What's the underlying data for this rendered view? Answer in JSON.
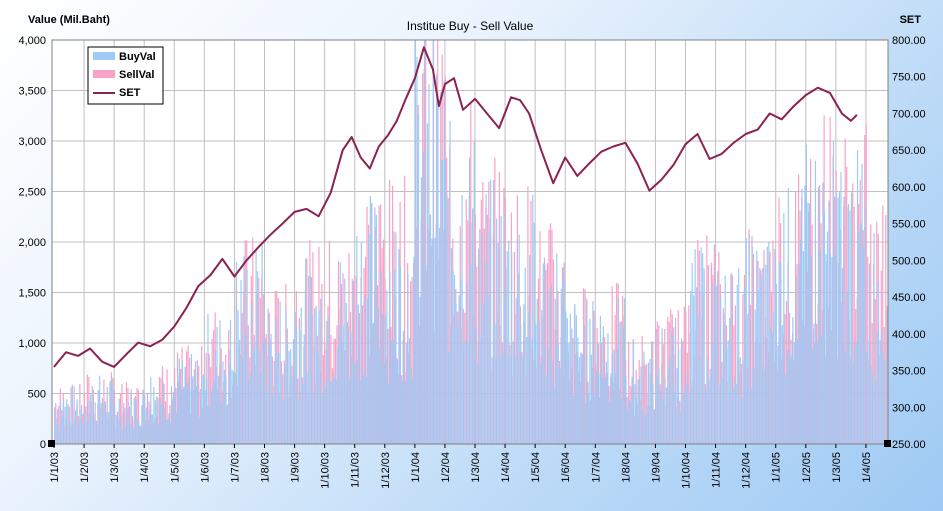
{
  "chart_data": {
    "type": "bar",
    "title": "Institue Buy - Sell Value",
    "ylabel": "Value (Mil.Baht)",
    "y2label": "SET",
    "ylim": [
      0,
      4000
    ],
    "y2lim": [
      250,
      800
    ],
    "yticks": [
      "0",
      "500",
      "1,000",
      "1,500",
      "2,000",
      "2,500",
      "3,000",
      "3,500",
      "4,000"
    ],
    "y2ticks": [
      "250.00",
      "300.00",
      "350.00",
      "400.00",
      "450.00",
      "500.00",
      "550.00",
      "600.00",
      "650.00",
      "700.00",
      "750.00",
      "800.00"
    ],
    "categories": [
      "1/1/03",
      "1/2/03",
      "1/3/03",
      "1/4/03",
      "1/5/03",
      "1/6/03",
      "1/7/03",
      "1/8/03",
      "1/9/03",
      "1/10/03",
      "1/11/03",
      "1/12/03",
      "1/1/04",
      "1/2/04",
      "1/3/04",
      "1/4/04",
      "1/5/04",
      "1/6/04",
      "1/7/04",
      "1/8/04",
      "1/9/04",
      "1/10/04",
      "1/11/04",
      "1/12/04",
      "1/1/05",
      "1/2/05",
      "1/3/05",
      "1/4/05"
    ],
    "grid": true,
    "legend_position": "top-left",
    "series": [
      {
        "name": "BuyVal",
        "type": "bar",
        "color": "#9ecbf5",
        "monthly_level": [
          420,
          500,
          420,
          560,
          650,
          950,
          1450,
          1100,
          1350,
          1400,
          1800,
          1700,
          3000,
          2300,
          1900,
          1800,
          1500,
          1050,
          1100,
          750,
          900,
          1400,
          1300,
          1500,
          1850,
          2200,
          2100,
          1650
        ]
      },
      {
        "name": "SellVal",
        "type": "bar",
        "color": "#f7a3c8",
        "monthly_level": [
          430,
          520,
          440,
          580,
          700,
          1000,
          1500,
          1150,
          1450,
          1500,
          2000,
          1900,
          3200,
          2500,
          2050,
          1900,
          1600,
          1150,
          1150,
          800,
          1000,
          1550,
          1400,
          1650,
          2000,
          2450,
          2300,
          1800
        ]
      },
      {
        "name": "SET",
        "type": "line",
        "axis": "right",
        "color": "#8b2252",
        "points": [
          [
            0,
            355
          ],
          [
            4,
            375
          ],
          [
            8,
            370
          ],
          [
            12,
            380
          ],
          [
            16,
            362
          ],
          [
            20,
            355
          ],
          [
            24,
            372
          ],
          [
            28,
            388
          ],
          [
            32,
            383
          ],
          [
            36,
            392
          ],
          [
            40,
            410
          ],
          [
            44,
            435
          ],
          [
            48,
            465
          ],
          [
            52,
            480
          ],
          [
            56,
            502
          ],
          [
            60,
            478
          ],
          [
            64,
            500
          ],
          [
            68,
            518
          ],
          [
            72,
            535
          ],
          [
            76,
            550
          ],
          [
            80,
            566
          ],
          [
            84,
            570
          ],
          [
            88,
            560
          ],
          [
            92,
            592
          ],
          [
            96,
            650
          ],
          [
            99,
            668
          ],
          [
            102,
            640
          ],
          [
            105,
            625
          ],
          [
            108,
            655
          ],
          [
            111,
            670
          ],
          [
            114,
            690
          ],
          [
            117,
            720
          ],
          [
            120,
            748
          ],
          [
            123,
            790
          ],
          [
            126,
            760
          ],
          [
            128,
            710
          ],
          [
            130,
            740
          ],
          [
            133,
            748
          ],
          [
            136,
            705
          ],
          [
            140,
            720
          ],
          [
            144,
            700
          ],
          [
            148,
            680
          ],
          [
            152,
            722
          ],
          [
            155,
            718
          ],
          [
            158,
            700
          ],
          [
            162,
            650
          ],
          [
            166,
            605
          ],
          [
            170,
            640
          ],
          [
            174,
            615
          ],
          [
            178,
            632
          ],
          [
            182,
            648
          ],
          [
            186,
            655
          ],
          [
            190,
            660
          ],
          [
            194,
            632
          ],
          [
            198,
            595
          ],
          [
            202,
            610
          ],
          [
            206,
            630
          ],
          [
            210,
            658
          ],
          [
            214,
            672
          ],
          [
            218,
            638
          ],
          [
            222,
            645
          ],
          [
            226,
            660
          ],
          [
            230,
            672
          ],
          [
            234,
            678
          ],
          [
            238,
            700
          ],
          [
            242,
            692
          ],
          [
            246,
            710
          ],
          [
            250,
            725
          ],
          [
            254,
            735
          ],
          [
            258,
            728
          ],
          [
            262,
            700
          ],
          [
            265,
            690
          ],
          [
            267,
            698
          ]
        ]
      }
    ]
  }
}
